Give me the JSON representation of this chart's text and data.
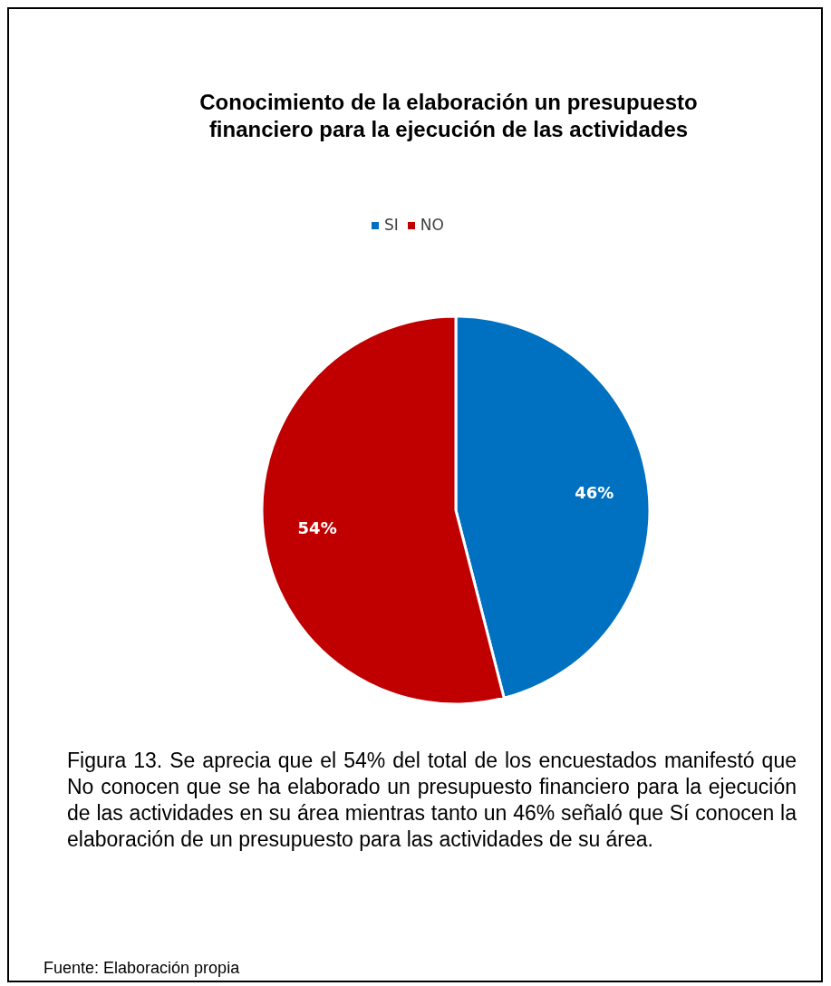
{
  "chart_data": {
    "type": "pie",
    "title": "Conocimiento de la elaboración un presupuesto financiero para la ejecución de las actividades",
    "categories": [
      "SI",
      "NO"
    ],
    "values": [
      46,
      54
    ],
    "colors": [
      "#0070c0",
      "#c00000"
    ],
    "value_labels": [
      "46%",
      "54%"
    ],
    "legend": "top",
    "annotations": [
      "Figura 13. Se aprecia que el 54% del total de los encuestados manifestó que No conocen que se ha elaborado un presupuesto financiero para la ejecución de las actividades en su área mientras tanto un 46% señaló que Sí conocen la elaboración de un presupuesto para las actividades de su área.",
      "Fuente: Elaboración propia"
    ]
  }
}
